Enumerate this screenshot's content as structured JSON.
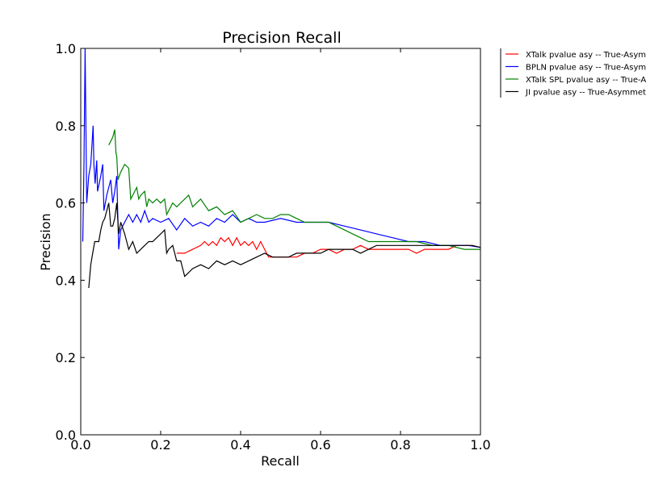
{
  "chart_data": {
    "type": "line",
    "title": "Precision Recall",
    "xlabel": "Recall",
    "ylabel": "Precision",
    "xlim": [
      0.0,
      1.0
    ],
    "ylim": [
      0.0,
      1.0
    ],
    "xticks": [
      "0.0",
      "0.2",
      "0.4",
      "0.6",
      "0.8",
      "1.0"
    ],
    "yticks": [
      "0.0",
      "0.2",
      "0.4",
      "0.6",
      "0.8",
      "1.0"
    ],
    "grid": false,
    "legend_position": "right, outside plot (top)",
    "series": [
      {
        "name": "XTalk pvalue asy -- True-Asymmetric",
        "color": "#ff0000",
        "points": [
          [
            0.24,
            0.47
          ],
          [
            0.26,
            0.47
          ],
          [
            0.28,
            0.48
          ],
          [
            0.3,
            0.49
          ],
          [
            0.31,
            0.5
          ],
          [
            0.32,
            0.49
          ],
          [
            0.33,
            0.5
          ],
          [
            0.34,
            0.49
          ],
          [
            0.35,
            0.51
          ],
          [
            0.36,
            0.5
          ],
          [
            0.37,
            0.51
          ],
          [
            0.38,
            0.49
          ],
          [
            0.39,
            0.51
          ],
          [
            0.4,
            0.49
          ],
          [
            0.41,
            0.5
          ],
          [
            0.42,
            0.49
          ],
          [
            0.43,
            0.5
          ],
          [
            0.44,
            0.48
          ],
          [
            0.45,
            0.5
          ],
          [
            0.46,
            0.48
          ],
          [
            0.47,
            0.46
          ],
          [
            0.5,
            0.46
          ],
          [
            0.52,
            0.46
          ],
          [
            0.54,
            0.46
          ],
          [
            0.56,
            0.47
          ],
          [
            0.58,
            0.47
          ],
          [
            0.6,
            0.48
          ],
          [
            0.62,
            0.48
          ],
          [
            0.64,
            0.47
          ],
          [
            0.66,
            0.48
          ],
          [
            0.68,
            0.48
          ],
          [
            0.7,
            0.49
          ],
          [
            0.72,
            0.48
          ],
          [
            0.74,
            0.48
          ],
          [
            0.76,
            0.48
          ],
          [
            0.78,
            0.48
          ],
          [
            0.8,
            0.48
          ],
          [
            0.82,
            0.48
          ],
          [
            0.84,
            0.47
          ],
          [
            0.86,
            0.48
          ],
          [
            0.88,
            0.48
          ],
          [
            0.9,
            0.48
          ],
          [
            0.92,
            0.48
          ],
          [
            0.94,
            0.49
          ],
          [
            0.96,
            0.49
          ],
          [
            0.98,
            0.49
          ],
          [
            1.0,
            0.485
          ]
        ]
      },
      {
        "name": "BPLN pvalue asy -- True-Asymmetric",
        "color": "#0000ff",
        "points": [
          [
            0.005,
            0.5
          ],
          [
            0.008,
            0.7
          ],
          [
            0.011,
            1.0
          ],
          [
            0.015,
            0.6
          ],
          [
            0.02,
            0.67
          ],
          [
            0.025,
            0.7
          ],
          [
            0.028,
            0.75
          ],
          [
            0.031,
            0.8
          ],
          [
            0.033,
            0.7
          ],
          [
            0.036,
            0.65
          ],
          [
            0.04,
            0.71
          ],
          [
            0.042,
            0.63
          ],
          [
            0.05,
            0.67
          ],
          [
            0.055,
            0.7
          ],
          [
            0.058,
            0.58
          ],
          [
            0.065,
            0.62
          ],
          [
            0.075,
            0.66
          ],
          [
            0.08,
            0.6
          ],
          [
            0.085,
            0.63
          ],
          [
            0.09,
            0.67
          ],
          [
            0.095,
            0.48
          ],
          [
            0.1,
            0.53
          ],
          [
            0.11,
            0.55
          ],
          [
            0.12,
            0.57
          ],
          [
            0.13,
            0.55
          ],
          [
            0.14,
            0.57
          ],
          [
            0.15,
            0.55
          ],
          [
            0.16,
            0.58
          ],
          [
            0.17,
            0.55
          ],
          [
            0.18,
            0.56
          ],
          [
            0.2,
            0.55
          ],
          [
            0.22,
            0.56
          ],
          [
            0.24,
            0.53
          ],
          [
            0.26,
            0.56
          ],
          [
            0.28,
            0.54
          ],
          [
            0.3,
            0.55
          ],
          [
            0.32,
            0.54
          ],
          [
            0.34,
            0.56
          ],
          [
            0.36,
            0.55
          ],
          [
            0.38,
            0.57
          ],
          [
            0.4,
            0.55
          ],
          [
            0.42,
            0.56
          ],
          [
            0.44,
            0.55
          ],
          [
            0.46,
            0.55
          ],
          [
            0.5,
            0.56
          ],
          [
            0.54,
            0.55
          ],
          [
            0.58,
            0.55
          ],
          [
            0.62,
            0.55
          ],
          [
            0.66,
            0.54
          ],
          [
            0.7,
            0.53
          ],
          [
            0.74,
            0.52
          ],
          [
            0.78,
            0.51
          ],
          [
            0.82,
            0.5
          ],
          [
            0.86,
            0.5
          ],
          [
            0.9,
            0.49
          ],
          [
            0.94,
            0.49
          ],
          [
            0.97,
            0.49
          ],
          [
            1.0,
            0.485
          ]
        ]
      },
      {
        "name": "XTalk SPL pvalue asy -- True-Asymmetric",
        "color": "#008000",
        "points": [
          [
            0.07,
            0.75
          ],
          [
            0.08,
            0.77
          ],
          [
            0.085,
            0.79
          ],
          [
            0.088,
            0.73
          ],
          [
            0.09,
            0.72
          ],
          [
            0.093,
            0.66
          ],
          [
            0.1,
            0.68
          ],
          [
            0.11,
            0.7
          ],
          [
            0.12,
            0.69
          ],
          [
            0.125,
            0.61
          ],
          [
            0.13,
            0.62
          ],
          [
            0.14,
            0.64
          ],
          [
            0.145,
            0.61
          ],
          [
            0.15,
            0.62
          ],
          [
            0.16,
            0.63
          ],
          [
            0.165,
            0.59
          ],
          [
            0.17,
            0.61
          ],
          [
            0.18,
            0.6
          ],
          [
            0.19,
            0.61
          ],
          [
            0.2,
            0.6
          ],
          [
            0.21,
            0.61
          ],
          [
            0.215,
            0.57
          ],
          [
            0.22,
            0.58
          ],
          [
            0.23,
            0.6
          ],
          [
            0.24,
            0.59
          ],
          [
            0.25,
            0.6
          ],
          [
            0.26,
            0.61
          ],
          [
            0.27,
            0.62
          ],
          [
            0.28,
            0.59
          ],
          [
            0.29,
            0.6
          ],
          [
            0.3,
            0.61
          ],
          [
            0.32,
            0.58
          ],
          [
            0.34,
            0.59
          ],
          [
            0.36,
            0.57
          ],
          [
            0.38,
            0.58
          ],
          [
            0.4,
            0.55
          ],
          [
            0.42,
            0.56
          ],
          [
            0.44,
            0.57
          ],
          [
            0.46,
            0.56
          ],
          [
            0.48,
            0.56
          ],
          [
            0.5,
            0.57
          ],
          [
            0.52,
            0.57
          ],
          [
            0.54,
            0.56
          ],
          [
            0.56,
            0.55
          ],
          [
            0.58,
            0.55
          ],
          [
            0.6,
            0.55
          ],
          [
            0.62,
            0.55
          ],
          [
            0.64,
            0.54
          ],
          [
            0.66,
            0.53
          ],
          [
            0.68,
            0.52
          ],
          [
            0.7,
            0.51
          ],
          [
            0.72,
            0.5
          ],
          [
            0.76,
            0.5
          ],
          [
            0.8,
            0.5
          ],
          [
            0.84,
            0.5
          ],
          [
            0.88,
            0.49
          ],
          [
            0.92,
            0.49
          ],
          [
            0.96,
            0.48
          ],
          [
            1.0,
            0.48
          ]
        ]
      },
      {
        "name": "JI pvalue asy -- True-Asymmetric",
        "color": "#000000",
        "points": [
          [
            0.02,
            0.38
          ],
          [
            0.025,
            0.44
          ],
          [
            0.03,
            0.47
          ],
          [
            0.035,
            0.5
          ],
          [
            0.045,
            0.5
          ],
          [
            0.05,
            0.53
          ],
          [
            0.055,
            0.55
          ],
          [
            0.06,
            0.56
          ],
          [
            0.065,
            0.58
          ],
          [
            0.07,
            0.6
          ],
          [
            0.075,
            0.54
          ],
          [
            0.08,
            0.54
          ],
          [
            0.085,
            0.56
          ],
          [
            0.09,
            0.6
          ],
          [
            0.095,
            0.52
          ],
          [
            0.1,
            0.55
          ],
          [
            0.11,
            0.52
          ],
          [
            0.115,
            0.5
          ],
          [
            0.12,
            0.48
          ],
          [
            0.13,
            0.5
          ],
          [
            0.14,
            0.47
          ],
          [
            0.15,
            0.48
          ],
          [
            0.16,
            0.49
          ],
          [
            0.17,
            0.5
          ],
          [
            0.18,
            0.5
          ],
          [
            0.19,
            0.51
          ],
          [
            0.2,
            0.52
          ],
          [
            0.21,
            0.53
          ],
          [
            0.215,
            0.47
          ],
          [
            0.22,
            0.48
          ],
          [
            0.23,
            0.49
          ],
          [
            0.24,
            0.45
          ],
          [
            0.25,
            0.45
          ],
          [
            0.26,
            0.41
          ],
          [
            0.27,
            0.42
          ],
          [
            0.28,
            0.43
          ],
          [
            0.3,
            0.44
          ],
          [
            0.32,
            0.43
          ],
          [
            0.34,
            0.45
          ],
          [
            0.36,
            0.44
          ],
          [
            0.38,
            0.45
          ],
          [
            0.4,
            0.44
          ],
          [
            0.42,
            0.45
          ],
          [
            0.44,
            0.46
          ],
          [
            0.46,
            0.47
          ],
          [
            0.48,
            0.46
          ],
          [
            0.5,
            0.46
          ],
          [
            0.52,
            0.46
          ],
          [
            0.54,
            0.47
          ],
          [
            0.56,
            0.47
          ],
          [
            0.58,
            0.47
          ],
          [
            0.6,
            0.47
          ],
          [
            0.62,
            0.48
          ],
          [
            0.64,
            0.48
          ],
          [
            0.66,
            0.48
          ],
          [
            0.68,
            0.48
          ],
          [
            0.7,
            0.47
          ],
          [
            0.72,
            0.48
          ],
          [
            0.74,
            0.49
          ],
          [
            0.76,
            0.49
          ],
          [
            0.78,
            0.49
          ],
          [
            0.8,
            0.49
          ],
          [
            0.82,
            0.49
          ],
          [
            0.84,
            0.49
          ],
          [
            0.86,
            0.49
          ],
          [
            0.88,
            0.49
          ],
          [
            0.9,
            0.49
          ],
          [
            0.92,
            0.49
          ],
          [
            0.94,
            0.49
          ],
          [
            0.96,
            0.49
          ],
          [
            0.98,
            0.49
          ],
          [
            1.0,
            0.485
          ]
        ]
      }
    ]
  }
}
